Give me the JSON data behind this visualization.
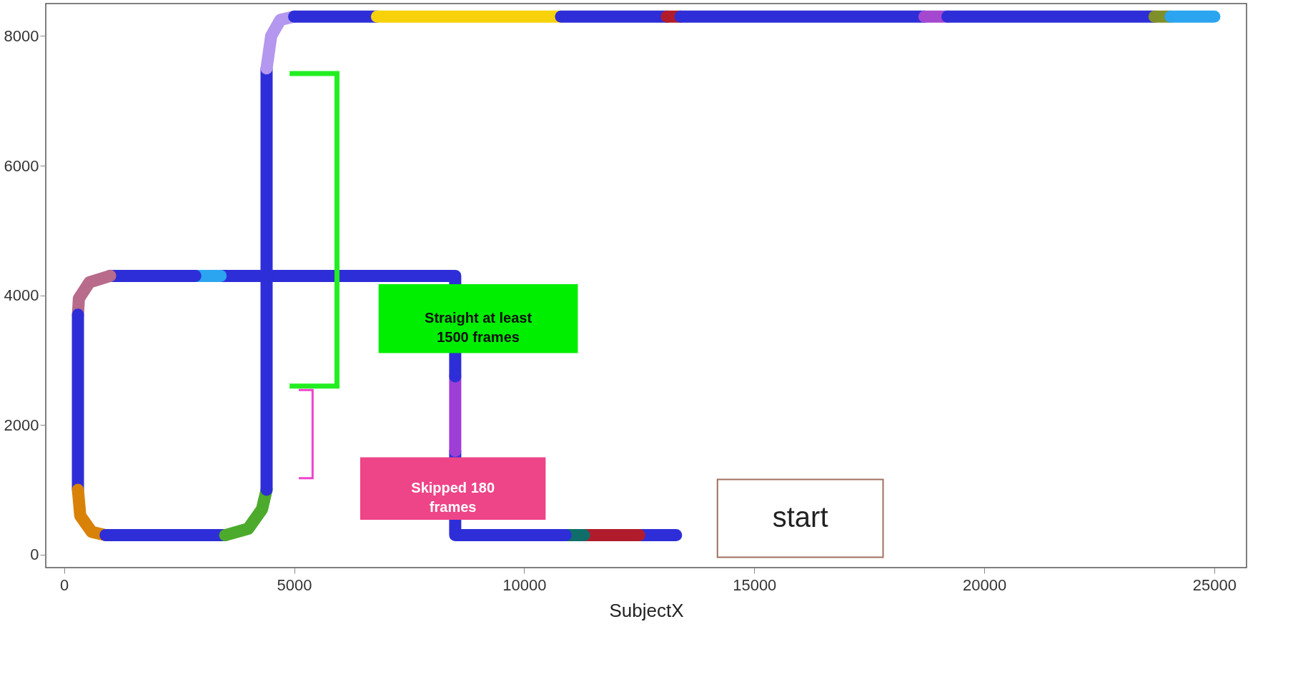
{
  "chart_data": {
    "type": "line",
    "xlabel": "SubjectX",
    "xlim": [
      -400,
      25700
    ],
    "ylim": [
      -200,
      8500
    ],
    "xticks": [
      0,
      5000,
      10000,
      15000,
      20000,
      25000
    ],
    "yticks": [
      0,
      2000,
      4000,
      6000,
      8000
    ],
    "grid": false,
    "series": [
      {
        "color": "#2e2ed8",
        "x": [
          13300,
          12500
        ],
        "values": [
          300,
          300
        ]
      },
      {
        "color": "#b01c2c",
        "x": [
          12500,
          11300
        ],
        "values": [
          300,
          300
        ]
      },
      {
        "color": "#0f6e6a",
        "x": [
          11300,
          10900
        ],
        "values": [
          300,
          300
        ]
      },
      {
        "color": "#2e2ed8",
        "x": [
          10900,
          8500,
          8500
        ],
        "values": [
          300,
          300,
          1600
        ]
      },
      {
        "color": "#9d3fd6",
        "x": [
          8500,
          8500
        ],
        "values": [
          1600,
          2750
        ]
      },
      {
        "color": "#2e2ed8",
        "x": [
          8500,
          8500,
          3400
        ],
        "values": [
          2750,
          4300,
          4300
        ]
      },
      {
        "color": "#2ba5f0",
        "x": [
          3400,
          2850
        ],
        "values": [
          4300,
          4300
        ]
      },
      {
        "color": "#2e2ed8",
        "x": [
          2850,
          1000
        ],
        "values": [
          4300,
          4300
        ]
      },
      {
        "color": "#b86b8a",
        "x": [
          1000,
          550,
          320,
          300
        ],
        "values": [
          4300,
          4200,
          3950,
          3700
        ]
      },
      {
        "color": "#2e2ed8",
        "x": [
          300,
          300
        ],
        "values": [
          3700,
          1000
        ]
      },
      {
        "color": "#d98208",
        "x": [
          300,
          350,
          600,
          900
        ],
        "values": [
          1000,
          600,
          350,
          300
        ]
      },
      {
        "color": "#2e2ed8",
        "x": [
          900,
          3500
        ],
        "values": [
          300,
          300
        ]
      },
      {
        "color": "#4caa2c",
        "x": [
          3500,
          4000,
          4300,
          4400
        ],
        "values": [
          300,
          400,
          700,
          1000
        ]
      },
      {
        "color": "#2e2ed8",
        "x": [
          4400,
          4400
        ],
        "values": [
          1000,
          7500
        ]
      },
      {
        "color": "#b497ee",
        "x": [
          4400,
          4500,
          4700,
          5000
        ],
        "values": [
          7500,
          8000,
          8250,
          8300
        ]
      },
      {
        "color": "#2e2ed8",
        "x": [
          5000,
          6800
        ],
        "values": [
          8300,
          8300
        ]
      },
      {
        "color": "#f7d20a",
        "x": [
          6800,
          10800
        ],
        "values": [
          8300,
          8300
        ]
      },
      {
        "color": "#2e2ed8",
        "x": [
          10800,
          13100
        ],
        "values": [
          8300,
          8300
        ]
      },
      {
        "color": "#b01c2c",
        "x": [
          13100,
          13400
        ],
        "values": [
          8300,
          8300
        ]
      },
      {
        "color": "#2e2ed8",
        "x": [
          13400,
          18700
        ],
        "values": [
          8300,
          8300
        ]
      },
      {
        "color": "#a448d0",
        "x": [
          18700,
          19200
        ],
        "values": [
          8300,
          8300
        ]
      },
      {
        "color": "#2e2ed8",
        "x": [
          19200,
          23700
        ],
        "values": [
          8300,
          8300
        ]
      },
      {
        "color": "#7f8f2a",
        "x": [
          23700,
          24050
        ],
        "values": [
          8300,
          8300
        ]
      },
      {
        "color": "#2ba5f0",
        "x": [
          24050,
          25000
        ],
        "values": [
          8300,
          8300
        ]
      }
    ],
    "annotations": [
      "Straight at least 1500 frames",
      "Skipped 180 frames",
      "start"
    ]
  }
}
